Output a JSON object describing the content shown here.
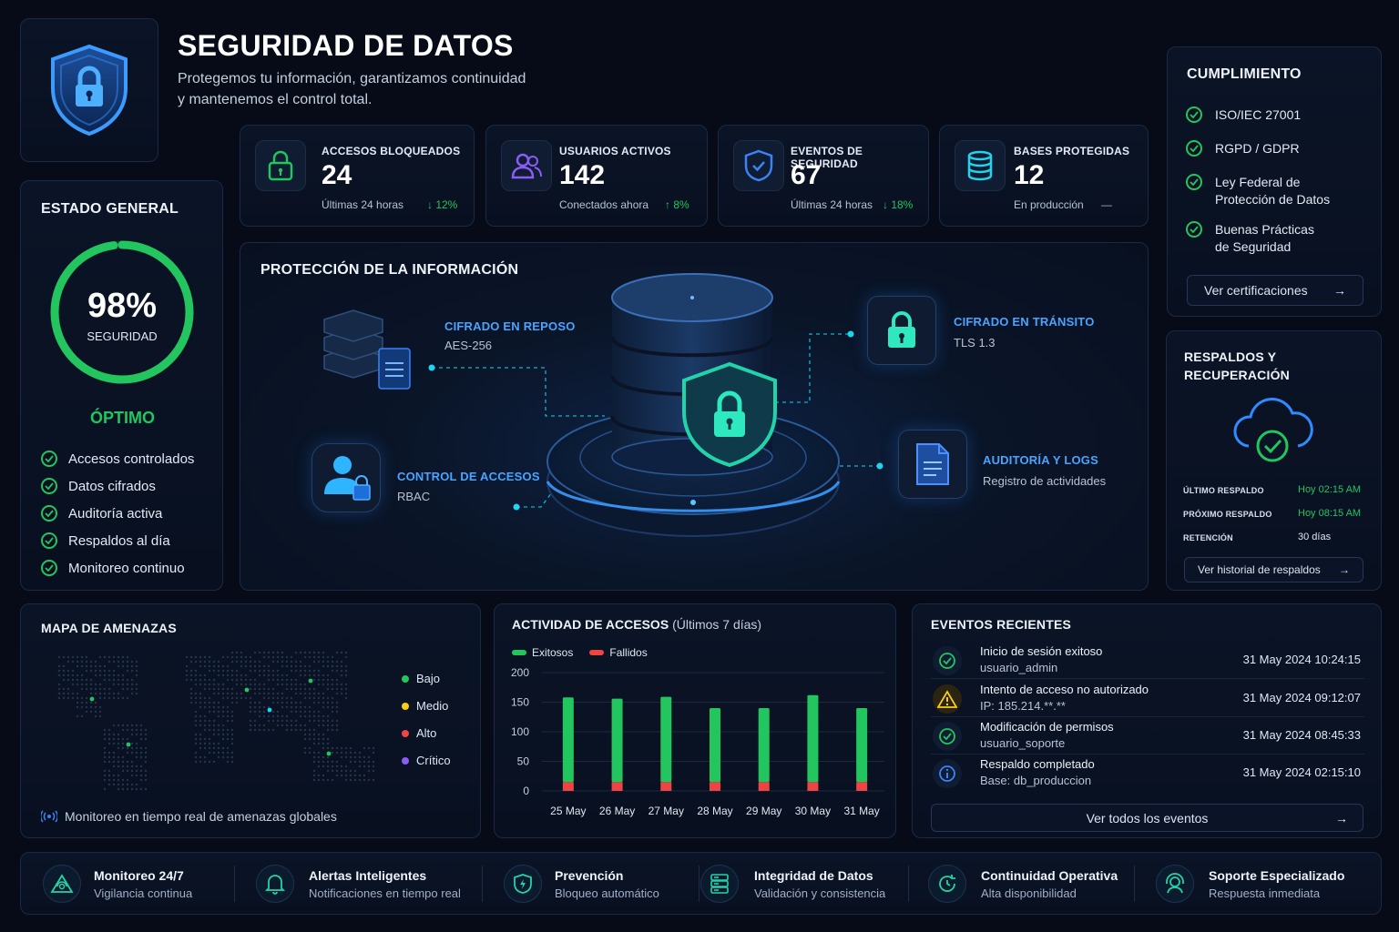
{
  "header": {
    "title": "SEGURIDAD DE DATOS",
    "subtitle_line1": "Protegemos tu información, garantizamos continuidad",
    "subtitle_line2": "y mantenemos el control total."
  },
  "stats": [
    {
      "label": "ACCESOS BLOQUEADOS",
      "value": "24",
      "sub": "Últimas 24 horas",
      "change": "↓ 12%",
      "icon": "lock-icon",
      "color": "#22c55e"
    },
    {
      "label": "USUARIOS ACTIVOS",
      "value": "142",
      "sub": "Conectados ahora",
      "change": "↑ 8%",
      "icon": "users-icon",
      "color": "#8b5cf6"
    },
    {
      "label": "EVENTOS DE SEGURIDAD",
      "value": "67",
      "sub": "Últimas 24 horas",
      "change": "↓ 18%",
      "icon": "shield-check-icon",
      "color": "#3b82f6"
    },
    {
      "label": "BASES PROTEGIDAS",
      "value": "12",
      "sub": "En producción",
      "change": "—",
      "icon": "database-icon",
      "color": "#22d3ee"
    }
  ],
  "estado": {
    "title": "ESTADO GENERAL",
    "percent": "98%",
    "percent_value": 98,
    "gauge_label": "SEGURIDAD",
    "status": "ÓPTIMO",
    "checks": [
      "Accesos controlados",
      "Datos cifrados",
      "Auditoría activa",
      "Respaldos al día",
      "Monitoreo continuo"
    ]
  },
  "proteccion": {
    "title": "PROTECCIÓN DE LA INFORMACIÓN",
    "reposo_label": "CIFRADO EN REPOSO",
    "reposo_sub": "AES-256",
    "transito_label": "CIFRADO EN TRÁNSITO",
    "transito_sub": "TLS 1.3",
    "accesos_label": "CONTROL DE ACCESOS",
    "accesos_sub": "RBAC",
    "auditoria_label": "AUDITORÍA Y LOGS",
    "auditoria_sub": "Registro de actividades"
  },
  "cumplimiento": {
    "title": "CUMPLIMIENTO",
    "items": [
      {
        "line1": "ISO/IEC 27001",
        "line2": ""
      },
      {
        "line1": "RGPD / GDPR",
        "line2": ""
      },
      {
        "line1": "Ley Federal de",
        "line2": "Protección de Datos"
      },
      {
        "line1": "Buenas Prácticas",
        "line2": "de Seguridad"
      }
    ],
    "button": "Ver certificaciones"
  },
  "respaldos": {
    "title_line1": "RESPALDOS Y",
    "title_line2": "RECUPERACIÓN",
    "rows": [
      {
        "label": "ÚLTIMO RESPALDO",
        "value": "Hoy 02:15 AM",
        "color": "#22c55e"
      },
      {
        "label": "PRÓXIMO RESPALDO",
        "value": "Hoy 08:15 AM",
        "color": "#22c55e"
      },
      {
        "label": "RETENCIÓN",
        "value": "30 días",
        "color": "#dfe7f2"
      }
    ],
    "button": "Ver historial de respaldos"
  },
  "mapa": {
    "title": "MAPA DE AMENAZAS",
    "legend": [
      {
        "label": "Bajo",
        "color": "#22c55e"
      },
      {
        "label": "Medio",
        "color": "#facc15"
      },
      {
        "label": "Alto",
        "color": "#ef4444"
      },
      {
        "label": "Crítico",
        "color": "#8b5cf6"
      }
    ],
    "footer": "Monitoreo en tiempo real de amenazas globales"
  },
  "chart_data": {
    "type": "bar",
    "title": "ACTIVIDAD DE ACCESOS",
    "title_suffix": "(Últimos 7 días)",
    "categories": [
      "25 May",
      "26 May",
      "27 May",
      "28 May",
      "29 May",
      "30 May",
      "31 May"
    ],
    "series": [
      {
        "name": "Exitosos",
        "color": "#22c55e",
        "values": [
          143,
          141,
          144,
          125,
          125,
          147,
          125
        ]
      },
      {
        "name": "Fallidos",
        "color": "#ef4444",
        "values": [
          15,
          15,
          15,
          15,
          15,
          15,
          15
        ]
      }
    ],
    "stacked": true,
    "yticks": [
      "0",
      "50",
      "100",
      "150",
      "200"
    ],
    "ylim": [
      0,
      200
    ],
    "grid": true,
    "legend_position": "top-left"
  },
  "eventos": {
    "title": "EVENTOS RECIENTES",
    "items": [
      {
        "title": "Inicio de sesión exitoso",
        "sub": "usuario_admin",
        "date": "31 May 2024  10:24:15",
        "icon": "check-circle-icon",
        "color": "#22c55e"
      },
      {
        "title": "Intento de acceso no autorizado",
        "sub": "IP: 185.214.**.**",
        "date": "31 May 2024  09:12:07",
        "icon": "warning-icon",
        "color": "#facc15"
      },
      {
        "title": "Modificación de permisos",
        "sub": "usuario_soporte",
        "date": "31 May 2024  08:45:33",
        "icon": "check-circle-icon",
        "color": "#22c55e"
      },
      {
        "title": "Respaldo completado",
        "sub": "Base: db_produccion",
        "date": "31 May 2024  02:15:10",
        "icon": "info-icon",
        "color": "#3b82f6"
      }
    ],
    "button": "Ver todos los eventos"
  },
  "footer": [
    {
      "title": "Monitoreo 24/7",
      "sub": "Vigilancia continua",
      "icon": "radar-icon"
    },
    {
      "title": "Alertas Inteligentes",
      "sub": "Notificaciones en tiempo real",
      "icon": "bell-icon"
    },
    {
      "title": "Prevención",
      "sub": "Bloqueo automático",
      "icon": "shield-bolt-icon"
    },
    {
      "title": "Integridad de Datos",
      "sub": "Validación y consistencia",
      "icon": "server-icon"
    },
    {
      "title": "Continuidad Operativa",
      "sub": "Alta disponibilidad",
      "icon": "recovery-icon"
    },
    {
      "title": "Soporte Especializado",
      "sub": "Respuesta inmediata",
      "icon": "support-icon"
    }
  ]
}
